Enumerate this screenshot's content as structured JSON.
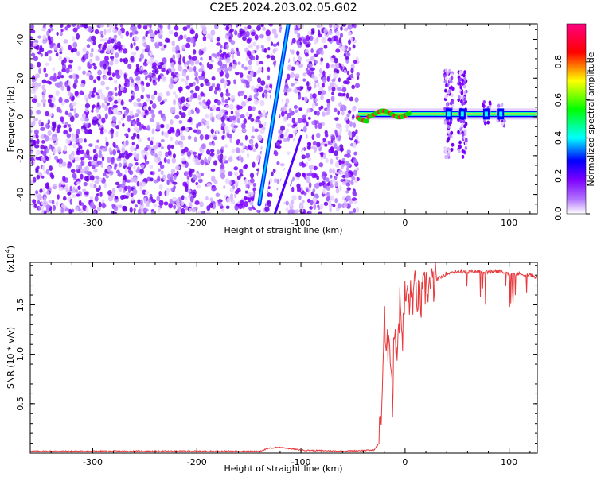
{
  "figure": {
    "title": "C2E5.2024.203.02.05.G02"
  },
  "chart_data": [
    {
      "type": "heatmap",
      "title": "C2E5.2024.203.02.05.G02",
      "xlabel": "Height of straight line (km)",
      "ylabel": "Frequency (Hz)",
      "xlim": [
        -360,
        127
      ],
      "ylim": [
        -50,
        48
      ],
      "x_ticks": [
        -300,
        -200,
        -100,
        0,
        100
      ],
      "x_tick_labels": [
        "-300",
        "-200",
        "-100",
        "0",
        "100"
      ],
      "y_ticks": [
        -40,
        -20,
        0,
        20,
        40
      ],
      "y_tick_labels": [
        "-40",
        "-20",
        "0",
        "20",
        "40"
      ],
      "colorbar": {
        "label": "Normalized spectral amplitude",
        "range": [
          0,
          1
        ],
        "ticks": [
          0.0,
          0.2,
          0.4,
          0.6,
          0.8
        ],
        "tick_labels": [
          "0.0",
          "0.2",
          "0.4",
          "0.6",
          "0.8"
        ],
        "colors": [
          "#ffffff",
          "#7b00ff",
          "#0000ff",
          "#00ffff",
          "#00ff00",
          "#ffff00",
          "#ff0000",
          "#ff0080"
        ]
      },
      "features": {
        "noise_region_x": [
          -360,
          -45
        ],
        "gap_region_x": [
          -45,
          35
        ],
        "diagonal_track_1": {
          "x": [
            -140,
            -112
          ],
          "y": [
            -45,
            48
          ]
        },
        "diagonal_track_2": {
          "x": [
            -125,
            -100
          ],
          "y": [
            -50,
            -10
          ]
        },
        "carrier_start_x": -45,
        "carrier_freq_hz": 1.5,
        "bursts_x": [
          42,
          55,
          78,
          92
        ]
      }
    },
    {
      "type": "line",
      "xlabel": "Height of straight line (km)",
      "ylabel": "SNR (10 * v/v)",
      "y_multiplier_label": "(x10",
      "y_multiplier_exp": "4",
      "y_multiplier_close": ")",
      "xlim": [
        -360,
        127
      ],
      "ylim": [
        0,
        1.93
      ],
      "x_ticks": [
        -300,
        -200,
        -100,
        0,
        100
      ],
      "x_tick_labels": [
        "-300",
        "-200",
        "-100",
        "0",
        "100"
      ],
      "y_ticks": [
        0.5,
        1.0,
        1.5
      ],
      "y_tick_labels": [
        "0.5",
        "1.0",
        "1.5"
      ],
      "color": "#e8383b",
      "x": [
        -360,
        -300,
        -200,
        -140,
        -130,
        -120,
        -100,
        -60,
        -30,
        -25,
        -22,
        -20,
        -18,
        -15,
        -12,
        -10,
        -8,
        -5,
        -2,
        0,
        5,
        10,
        15,
        20,
        25,
        30,
        40,
        50,
        60,
        70,
        80,
        90,
        100,
        110,
        120,
        127
      ],
      "y": [
        0.02,
        0.02,
        0.02,
        0.02,
        0.05,
        0.06,
        0.03,
        0.02,
        0.03,
        0.1,
        0.6,
        1.4,
        0.9,
        1.3,
        0.5,
        1.4,
        1.0,
        1.5,
        1.2,
        1.6,
        1.55,
        1.65,
        1.5,
        1.7,
        1.68,
        1.75,
        1.82,
        1.84,
        1.83,
        1.84,
        1.83,
        1.84,
        1.82,
        1.81,
        1.8,
        1.78
      ]
    }
  ]
}
